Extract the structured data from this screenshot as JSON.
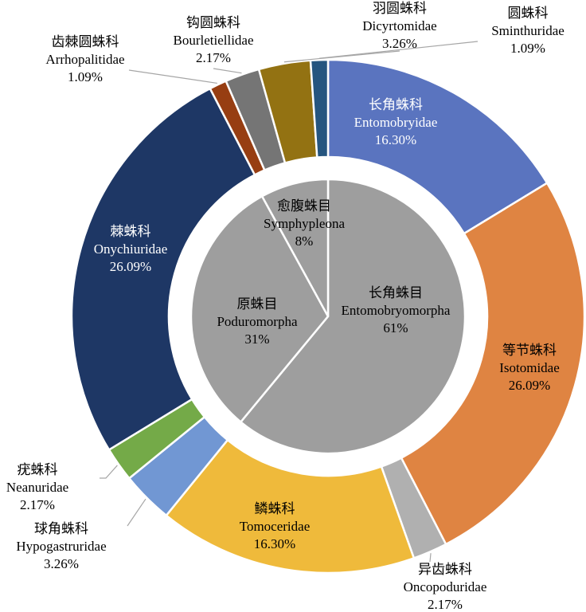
{
  "chart_data": [
    {
      "type": "pie",
      "ring": "outer",
      "slices": [
        {
          "key": "ento",
          "cn": "长角蛛科",
          "name": "Entomobryidae",
          "value": 16.3,
          "label": "16.30%",
          "color": "#5a74bf"
        },
        {
          "key": "iso",
          "cn": "等节蛛科",
          "name": "Isotomidae",
          "value": 26.09,
          "label": "26.09%",
          "color": "#df8442"
        },
        {
          "key": "onco",
          "cn": "异齿蛛科",
          "name": "Oncopoduridae",
          "value": 2.17,
          "label": "2.17%",
          "color": "#b0b0b0"
        },
        {
          "key": "tomo",
          "cn": "鳞蛛科",
          "name": "Tomoceridae",
          "value": 16.3,
          "label": "16.30%",
          "color": "#efba3b"
        },
        {
          "key": "hypo",
          "cn": "球角蛛科",
          "name": "Hypogastruridae",
          "value": 3.26,
          "label": "3.26%",
          "color": "#7197d3"
        },
        {
          "key": "nean",
          "cn": "疣蛛科",
          "name": "Neanuridae",
          "value": 2.17,
          "label": "2.17%",
          "color": "#74aa48"
        },
        {
          "key": "onych",
          "cn": "棘蛛科",
          "name": "Onychiuridae",
          "value": 26.09,
          "label": "26.09%",
          "color": "#1e3765"
        },
        {
          "key": "arrh",
          "cn": "齿棘圆蛛科",
          "name": "Arrhopalitidae",
          "value": 1.09,
          "label": "1.09%",
          "color": "#973e12"
        },
        {
          "key": "bour",
          "cn": "钩圆蛛科",
          "name": "Bourletiellidae",
          "value": 2.17,
          "label": "2.17%",
          "color": "#757575"
        },
        {
          "key": "dicy",
          "cn": "羽圆蛛科",
          "name": "Dicyrtomidae",
          "value": 3.26,
          "label": "3.26%",
          "color": "#937212"
        },
        {
          "key": "smin",
          "cn": "圆蛛科",
          "name": "Sminthuridae",
          "value": 1.09,
          "label": "1.09%",
          "color": "#25557f"
        }
      ]
    },
    {
      "type": "pie",
      "ring": "inner",
      "slices": [
        {
          "key": "entom",
          "cn": "长角蛛目",
          "name": "Entomobryomorpha",
          "value": 61,
          "label": "61%",
          "color": "#9e9e9e"
        },
        {
          "key": "podu",
          "cn": "原蛛目",
          "name": "Poduromorpha",
          "value": 31,
          "label": "31%",
          "color": "#9e9e9e"
        },
        {
          "key": "symp",
          "cn": "愈腹蛛目",
          "name": "Symphypleona",
          "value": 8,
          "label": "8%",
          "color": "#9e9e9e"
        }
      ]
    }
  ]
}
